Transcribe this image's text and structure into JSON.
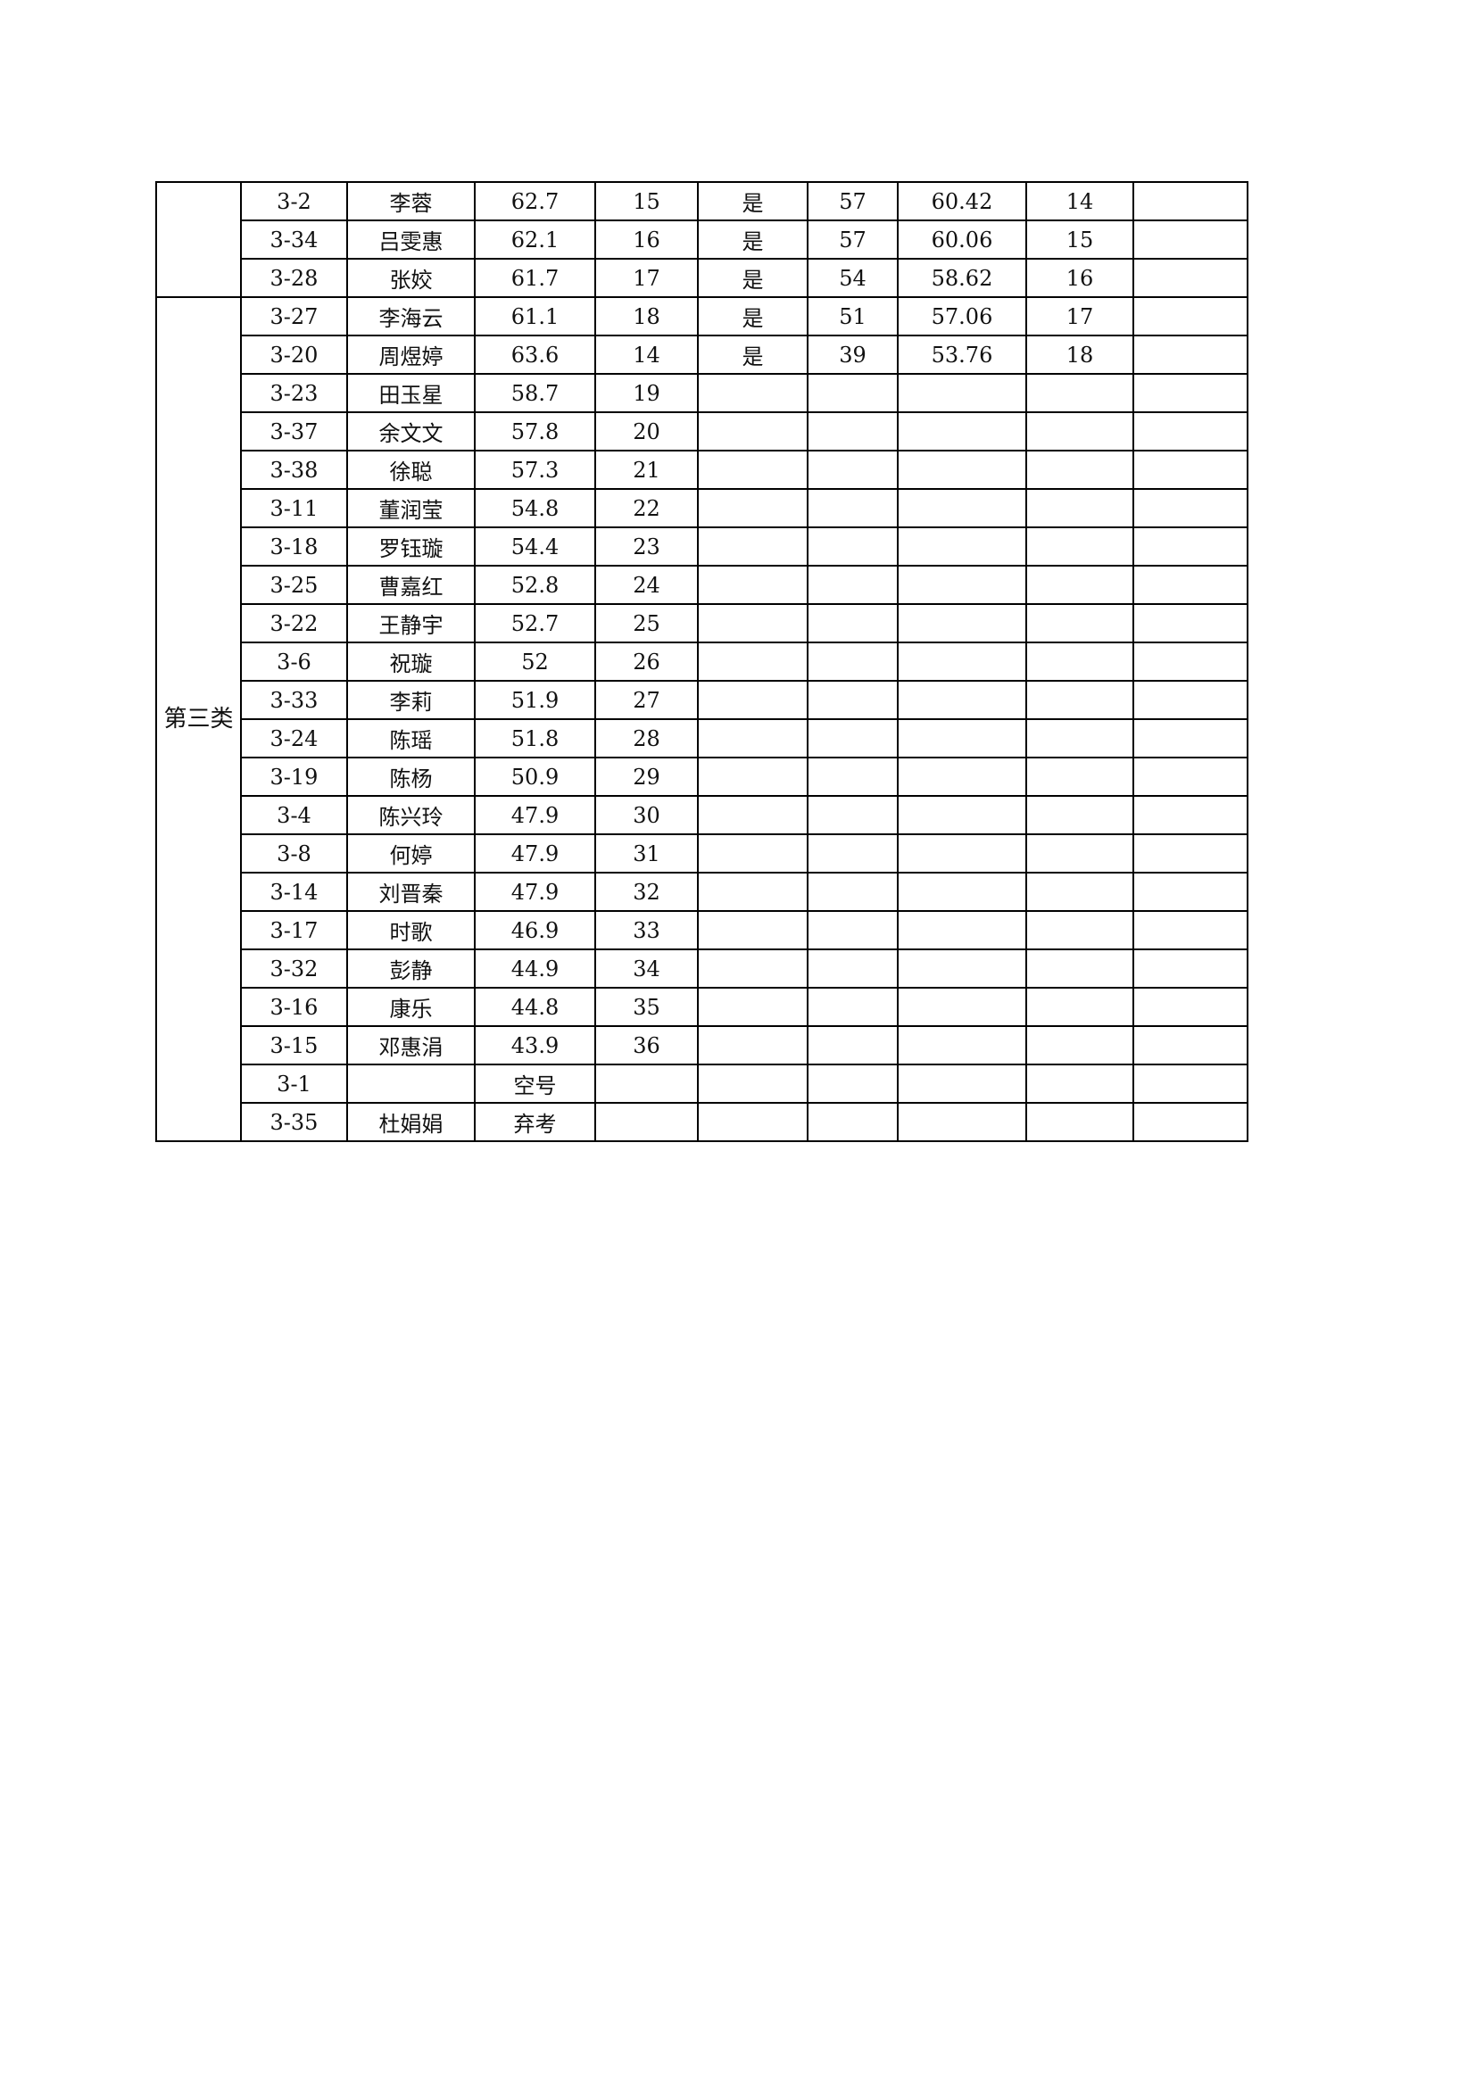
{
  "groups": [
    {
      "label": "",
      "row_count": 3
    },
    {
      "label": "第三类",
      "row_count": 22
    }
  ],
  "rows": [
    [
      "3-2",
      "李蓉",
      "62.7",
      "15",
      "是",
      "57",
      "60.42",
      "14",
      ""
    ],
    [
      "3-34",
      "吕雯惠",
      "62.1",
      "16",
      "是",
      "57",
      "60.06",
      "15",
      ""
    ],
    [
      "3-28",
      "张姣",
      "61.7",
      "17",
      "是",
      "54",
      "58.62",
      "16",
      ""
    ],
    [
      "3-27",
      "李海云",
      "61.1",
      "18",
      "是",
      "51",
      "57.06",
      "17",
      ""
    ],
    [
      "3-20",
      "周煜婷",
      "63.6",
      "14",
      "是",
      "39",
      "53.76",
      "18",
      ""
    ],
    [
      "3-23",
      "田玉星",
      "58.7",
      "19",
      "",
      "",
      "",
      "",
      ""
    ],
    [
      "3-37",
      "余文文",
      "57.8",
      "20",
      "",
      "",
      "",
      "",
      ""
    ],
    [
      "3-38",
      "徐聪",
      "57.3",
      "21",
      "",
      "",
      "",
      "",
      ""
    ],
    [
      "3-11",
      "董润莹",
      "54.8",
      "22",
      "",
      "",
      "",
      "",
      ""
    ],
    [
      "3-18",
      "罗钰璇",
      "54.4",
      "23",
      "",
      "",
      "",
      "",
      ""
    ],
    [
      "3-25",
      "曹嘉红",
      "52.8",
      "24",
      "",
      "",
      "",
      "",
      ""
    ],
    [
      "3-22",
      "王静宇",
      "52.7",
      "25",
      "",
      "",
      "",
      "",
      ""
    ],
    [
      "3-6",
      "祝璇",
      "52",
      "26",
      "",
      "",
      "",
      "",
      ""
    ],
    [
      "3-33",
      "李莉",
      "51.9",
      "27",
      "",
      "",
      "",
      "",
      ""
    ],
    [
      "3-24",
      "陈瑶",
      "51.8",
      "28",
      "",
      "",
      "",
      "",
      ""
    ],
    [
      "3-19",
      "陈杨",
      "50.9",
      "29",
      "",
      "",
      "",
      "",
      ""
    ],
    [
      "3-4",
      "陈兴玲",
      "47.9",
      "30",
      "",
      "",
      "",
      "",
      ""
    ],
    [
      "3-8",
      "何婷",
      "47.9",
      "31",
      "",
      "",
      "",
      "",
      ""
    ],
    [
      "3-14",
      "刘晋秦",
      "47.9",
      "32",
      "",
      "",
      "",
      "",
      ""
    ],
    [
      "3-17",
      "时歌",
      "46.9",
      "33",
      "",
      "",
      "",
      "",
      ""
    ],
    [
      "3-32",
      "彭静",
      "44.9",
      "34",
      "",
      "",
      "",
      "",
      ""
    ],
    [
      "3-16",
      "康乐",
      "44.8",
      "35",
      "",
      "",
      "",
      "",
      ""
    ],
    [
      "3-15",
      "邓惠涓",
      "43.9",
      "36",
      "",
      "",
      "",
      "",
      ""
    ],
    [
      "3-1",
      "",
      "空号",
      "",
      "",
      "",
      "",
      "",
      ""
    ],
    [
      "3-35",
      "杜娟娟",
      "弃考",
      "",
      "",
      "",
      "",
      "",
      ""
    ]
  ]
}
